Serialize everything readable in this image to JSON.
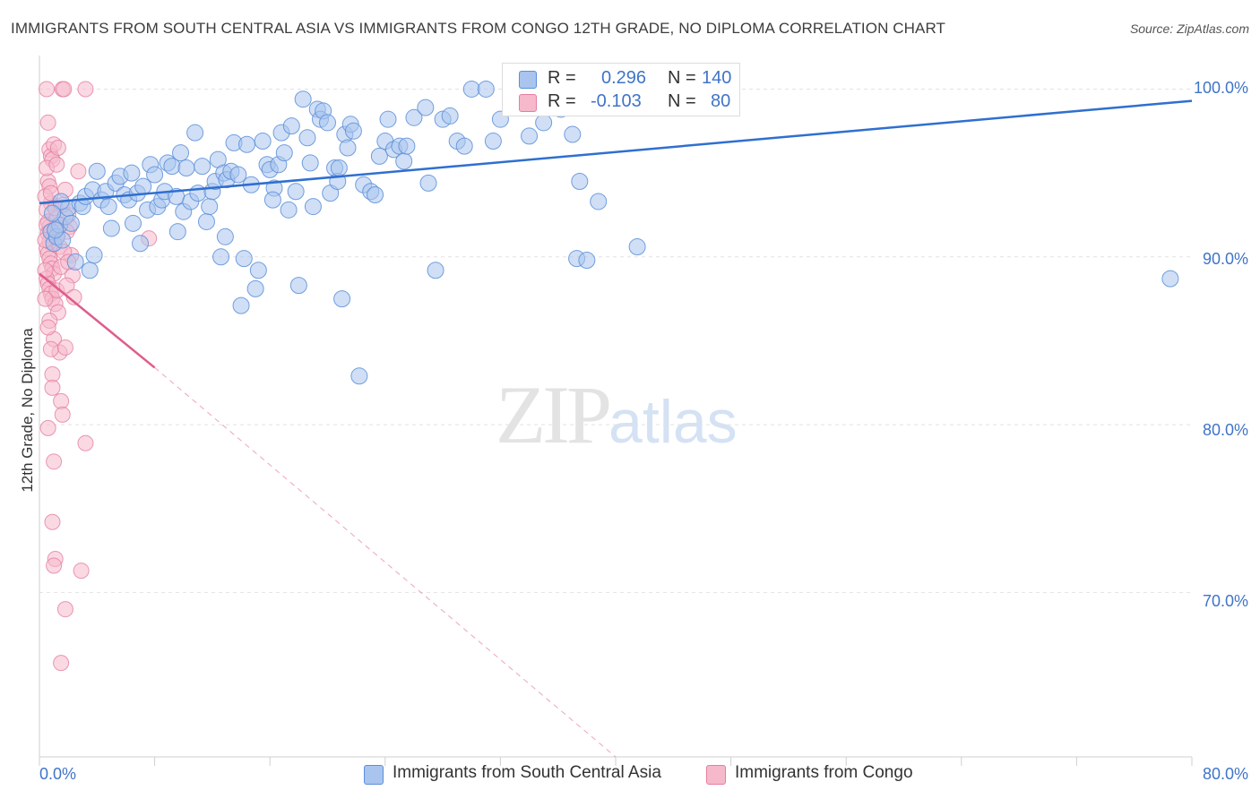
{
  "title": "IMMIGRANTS FROM SOUTH CENTRAL ASIA VS IMMIGRANTS FROM CONGO 12TH GRADE, NO DIPLOMA CORRELATION CHART",
  "source": "Source: ZipAtlas.com",
  "watermark": {
    "zip": "ZIP",
    "atlas": "atlas"
  },
  "legend": {
    "series1": {
      "r_label": "R =",
      "r_value": "0.296",
      "n_label": "N =",
      "n_value": "140"
    },
    "series2": {
      "r_label": "R =",
      "r_value": "-0.103",
      "n_label": "N =",
      "n_value": "80"
    }
  },
  "colors": {
    "blue_fill": "#a9c4ee",
    "blue_stroke": "#5b8fd8",
    "blue_line": "#2f6fd0",
    "pink_fill": "#f6b9cc",
    "pink_stroke": "#e57ea0",
    "pink_line": "#e05c8c",
    "tick_text": "#3f74c8",
    "grid": "#e2e2e2"
  },
  "chart_data": {
    "type": "scatter",
    "title": "IMMIGRANTS FROM SOUTH CENTRAL ASIA VS IMMIGRANTS FROM CONGO 12TH GRADE, NO DIPLOMA CORRELATION CHART",
    "xlabel": "",
    "ylabel": "12th Grade, No Diploma",
    "xlim": [
      0,
      80
    ],
    "ylim": [
      60.2,
      102
    ],
    "x_tick_labels": [
      "0.0%",
      "80.0%"
    ],
    "y_ticks": [
      70,
      80,
      90,
      100
    ],
    "y_tick_labels": [
      "70.0%",
      "80.0%",
      "90.0%",
      "100.0%"
    ],
    "grid": true,
    "legend_position": "top-center",
    "series": [
      {
        "name": "Immigrants from South Central Asia",
        "color": "#5b8fd8",
        "trend": {
          "x": [
            0,
            80
          ],
          "y": [
            93.2,
            99.3
          ],
          "style": "solid"
        },
        "points": [
          [
            0.8,
            91.5
          ],
          [
            1.0,
            90.8
          ],
          [
            1.2,
            91.2
          ],
          [
            1.4,
            91.9
          ],
          [
            1.6,
            91.0
          ],
          [
            1.8,
            92.4
          ],
          [
            2.0,
            92.9
          ],
          [
            2.5,
            89.7
          ],
          [
            2.8,
            93.2
          ],
          [
            3.0,
            93.0
          ],
          [
            3.2,
            93.6
          ],
          [
            3.5,
            89.2
          ],
          [
            3.7,
            94.0
          ],
          [
            4.0,
            95.1
          ],
          [
            4.3,
            93.4
          ],
          [
            4.6,
            93.9
          ],
          [
            4.8,
            93.0
          ],
          [
            5.0,
            91.7
          ],
          [
            5.3,
            94.4
          ],
          [
            5.6,
            94.8
          ],
          [
            5.9,
            93.7
          ],
          [
            6.2,
            93.4
          ],
          [
            6.5,
            92.0
          ],
          [
            6.8,
            93.8
          ],
          [
            7.0,
            90.8
          ],
          [
            7.2,
            94.2
          ],
          [
            7.5,
            92.8
          ],
          [
            7.7,
            95.5
          ],
          [
            8.0,
            94.9
          ],
          [
            8.2,
            93.0
          ],
          [
            8.5,
            93.4
          ],
          [
            8.7,
            93.9
          ],
          [
            8.9,
            95.6
          ],
          [
            9.2,
            95.4
          ],
          [
            9.5,
            93.6
          ],
          [
            9.8,
            96.2
          ],
          [
            10.0,
            92.7
          ],
          [
            10.2,
            95.3
          ],
          [
            10.5,
            93.3
          ],
          [
            10.8,
            97.4
          ],
          [
            11.0,
            93.8
          ],
          [
            11.3,
            95.4
          ],
          [
            11.6,
            92.1
          ],
          [
            11.8,
            93.0
          ],
          [
            12.0,
            93.9
          ],
          [
            12.2,
            94.5
          ],
          [
            12.4,
            95.8
          ],
          [
            12.6,
            90.0
          ],
          [
            12.8,
            95.0
          ],
          [
            13.0,
            94.6
          ],
          [
            13.3,
            95.1
          ],
          [
            13.5,
            96.8
          ],
          [
            13.8,
            94.9
          ],
          [
            14.0,
            87.1
          ],
          [
            14.2,
            89.9
          ],
          [
            14.4,
            96.7
          ],
          [
            14.7,
            94.3
          ],
          [
            15.0,
            88.1
          ],
          [
            15.2,
            89.2
          ],
          [
            15.5,
            96.9
          ],
          [
            15.8,
            95.5
          ],
          [
            16.0,
            95.2
          ],
          [
            16.3,
            94.1
          ],
          [
            16.6,
            95.5
          ],
          [
            16.8,
            97.4
          ],
          [
            17.0,
            96.2
          ],
          [
            17.3,
            92.8
          ],
          [
            17.5,
            97.8
          ],
          [
            17.8,
            93.9
          ],
          [
            18.0,
            88.3
          ],
          [
            18.3,
            99.4
          ],
          [
            18.6,
            97.1
          ],
          [
            18.8,
            95.6
          ],
          [
            19.0,
            93.0
          ],
          [
            19.3,
            98.8
          ],
          [
            19.5,
            98.2
          ],
          [
            19.7,
            98.7
          ],
          [
            20.0,
            98.0
          ],
          [
            20.2,
            93.8
          ],
          [
            20.5,
            95.3
          ],
          [
            20.7,
            94.5
          ],
          [
            21.0,
            87.5
          ],
          [
            21.2,
            97.3
          ],
          [
            21.4,
            96.5
          ],
          [
            21.6,
            97.9
          ],
          [
            21.8,
            97.5
          ],
          [
            22.2,
            82.9
          ],
          [
            22.5,
            94.3
          ],
          [
            23.0,
            93.9
          ],
          [
            23.3,
            93.7
          ],
          [
            23.6,
            96.0
          ],
          [
            24.0,
            96.9
          ],
          [
            24.2,
            98.2
          ],
          [
            24.6,
            96.4
          ],
          [
            25.0,
            96.6
          ],
          [
            25.3,
            95.7
          ],
          [
            25.5,
            96.6
          ],
          [
            26.0,
            98.3
          ],
          [
            27.0,
            94.4
          ],
          [
            27.5,
            89.2
          ],
          [
            28.0,
            98.2
          ],
          [
            28.5,
            98.4
          ],
          [
            29.0,
            96.9
          ],
          [
            29.5,
            96.6
          ],
          [
            30.0,
            100.0
          ],
          [
            31.0,
            100.0
          ],
          [
            32.0,
            98.2
          ],
          [
            33.5,
            99.2
          ],
          [
            34.0,
            97.2
          ],
          [
            37.0,
            97.3
          ],
          [
            37.3,
            89.9
          ],
          [
            37.5,
            94.5
          ],
          [
            38.0,
            89.8
          ],
          [
            38.8,
            93.3
          ],
          [
            41.5,
            90.6
          ],
          [
            78.5,
            88.7
          ],
          [
            35.0,
            98.0
          ],
          [
            36.2,
            98.8
          ],
          [
            26.8,
            98.9
          ],
          [
            31.5,
            96.9
          ],
          [
            20.8,
            95.3
          ],
          [
            16.2,
            93.4
          ],
          [
            12.9,
            91.2
          ],
          [
            9.6,
            91.5
          ],
          [
            6.4,
            95.0
          ],
          [
            3.8,
            90.1
          ],
          [
            2.2,
            92.0
          ],
          [
            1.5,
            93.3
          ],
          [
            1.1,
            91.6
          ],
          [
            0.9,
            92.6
          ]
        ]
      },
      {
        "name": "Immigrants from Congo",
        "color": "#e57ea0",
        "trend": {
          "x": [
            0,
            8
          ],
          "y": [
            89.0,
            83.4
          ],
          "style": "solid",
          "dashed_extension": {
            "x": [
              8,
              40
            ],
            "y": [
              83.4,
              60.2
            ]
          }
        },
        "points": [
          [
            0.5,
            100.0
          ],
          [
            0.6,
            98.0
          ],
          [
            0.7,
            96.4
          ],
          [
            0.8,
            96.0
          ],
          [
            0.9,
            95.8
          ],
          [
            1.0,
            96.7
          ],
          [
            0.6,
            94.5
          ],
          [
            0.7,
            94.2
          ],
          [
            0.8,
            93.2
          ],
          [
            0.5,
            92.8
          ],
          [
            0.6,
            92.1
          ],
          [
            0.7,
            91.8
          ],
          [
            0.8,
            91.5
          ],
          [
            0.9,
            91.2
          ],
          [
            1.0,
            90.8
          ],
          [
            0.5,
            90.5
          ],
          [
            0.6,
            90.2
          ],
          [
            0.7,
            89.9
          ],
          [
            0.8,
            89.6
          ],
          [
            0.9,
            89.3
          ],
          [
            1.0,
            89.0
          ],
          [
            0.5,
            88.7
          ],
          [
            0.6,
            88.4
          ],
          [
            0.7,
            88.1
          ],
          [
            0.8,
            87.8
          ],
          [
            0.9,
            87.5
          ],
          [
            1.1,
            87.2
          ],
          [
            0.5,
            91.9
          ],
          [
            0.6,
            91.4
          ],
          [
            0.7,
            90.9
          ],
          [
            1.2,
            92.3
          ],
          [
            1.3,
            91.7
          ],
          [
            1.4,
            90.6
          ],
          [
            1.5,
            89.4
          ],
          [
            1.2,
            88.0
          ],
          [
            1.3,
            86.7
          ],
          [
            1.4,
            84.3
          ],
          [
            1.0,
            85.1
          ],
          [
            0.8,
            84.5
          ],
          [
            0.9,
            83.0
          ],
          [
            1.5,
            81.4
          ],
          [
            1.6,
            80.6
          ],
          [
            0.6,
            79.8
          ],
          [
            1.0,
            77.8
          ],
          [
            3.2,
            78.9
          ],
          [
            0.9,
            74.2
          ],
          [
            1.1,
            72.0
          ],
          [
            1.0,
            71.6
          ],
          [
            2.9,
            71.3
          ],
          [
            1.8,
            69.0
          ],
          [
            1.5,
            65.8
          ],
          [
            1.6,
            100.0
          ],
          [
            1.7,
            100.0
          ],
          [
            3.2,
            100.0
          ],
          [
            2.7,
            95.1
          ],
          [
            7.6,
            91.1
          ],
          [
            1.8,
            94.0
          ],
          [
            2.0,
            92.5
          ],
          [
            2.1,
            91.8
          ],
          [
            2.2,
            90.1
          ],
          [
            2.3,
            88.9
          ],
          [
            1.9,
            88.3
          ],
          [
            0.4,
            91.0
          ],
          [
            0.4,
            89.2
          ],
          [
            0.4,
            87.5
          ],
          [
            0.4,
            93.6
          ],
          [
            0.5,
            95.3
          ],
          [
            1.6,
            93.1
          ],
          [
            1.7,
            90.3
          ],
          [
            1.1,
            92.9
          ],
          [
            1.2,
            95.5
          ],
          [
            1.3,
            96.5
          ],
          [
            0.7,
            86.2
          ],
          [
            0.6,
            85.8
          ],
          [
            2.4,
            87.6
          ],
          [
            1.8,
            84.6
          ],
          [
            0.9,
            82.2
          ],
          [
            0.8,
            93.8
          ],
          [
            1.9,
            91.5
          ],
          [
            2.0,
            89.7
          ]
        ]
      }
    ]
  },
  "axes": {
    "ylabel": "12th Grade, No Diploma",
    "x_min_label": "0.0%",
    "x_max_label": "80.0%",
    "y_labels": {
      "t100": "100.0%",
      "t90": "90.0%",
      "t80": "80.0%",
      "t70": "70.0%"
    }
  },
  "bottom_legend": {
    "series1": "Immigrants from South Central Asia",
    "series2": "Immigrants from Congo"
  }
}
